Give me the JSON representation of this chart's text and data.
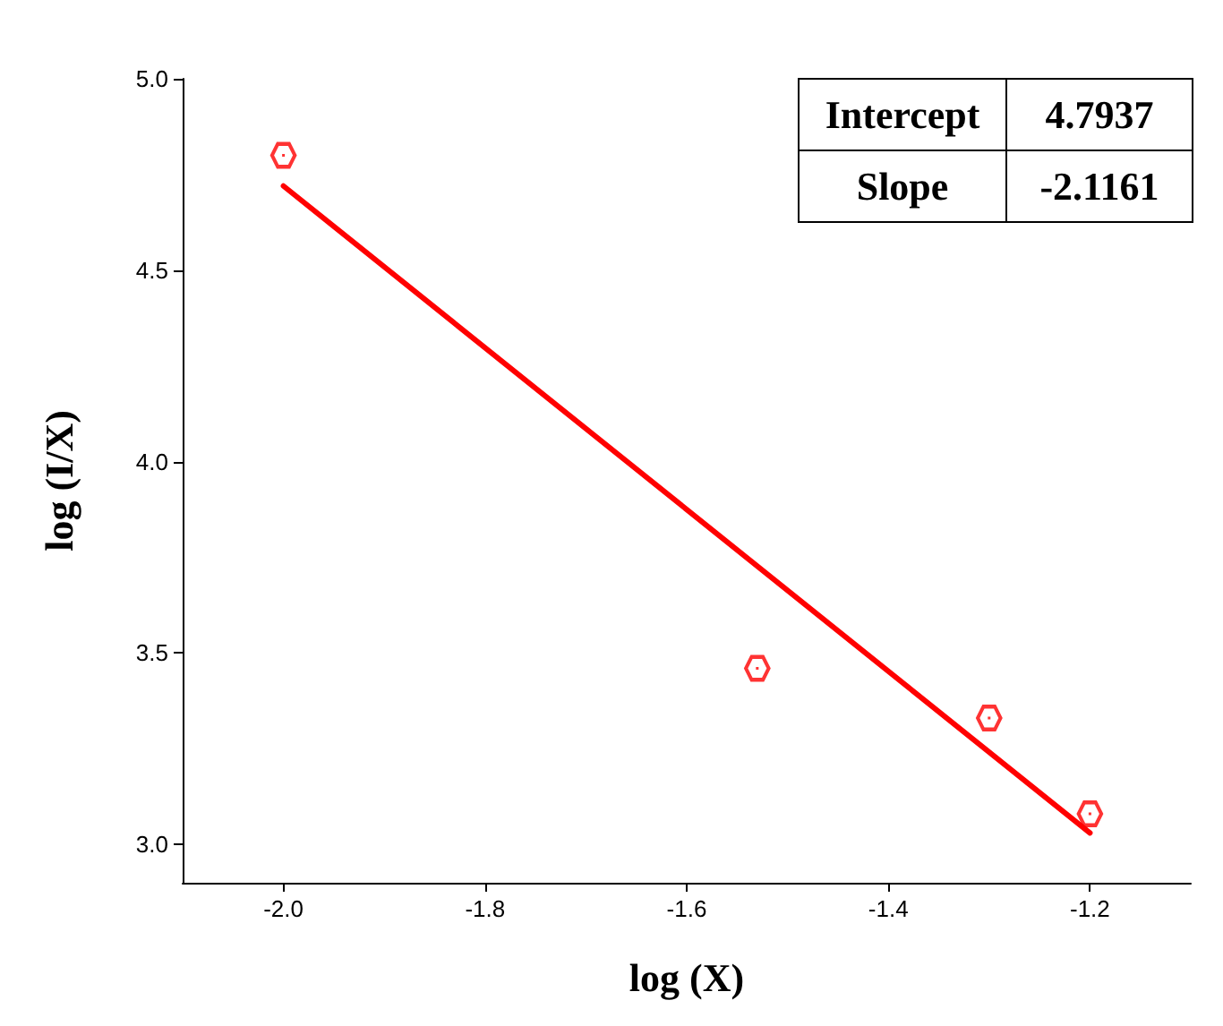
{
  "chart_data": {
    "type": "scatter",
    "xlabel": "log (X)",
    "ylabel": "log (I/X)",
    "x": [
      -2.0,
      -1.53,
      -1.3,
      -1.2
    ],
    "series": [
      {
        "type": "scatter",
        "color": "#ff0000",
        "values": [
          4.8,
          3.46,
          3.33,
          3.08
        ],
        "marker": "circle"
      },
      {
        "type": "line",
        "color": "#ff0000",
        "x": [
          -2.0,
          -1.2
        ],
        "values": [
          4.72,
          3.03
        ],
        "marker": "none",
        "line_style": "solid"
      }
    ],
    "xlim": [
      -2.1,
      -1.1
    ],
    "xticks": [
      {
        "value": -2,
        "label": "-2.0"
      },
      -1.8,
      -1.6,
      -1.4,
      -1.2
    ],
    "ylim": [
      2.9,
      5.0
    ],
    "yticks": [
      {
        "value": 3,
        "label": "3.0"
      },
      3.5,
      {
        "value": 4,
        "label": "4.0"
      },
      4.5,
      {
        "value": 5,
        "label": "5.0"
      }
    ],
    "grid": false,
    "annotations": [
      "Intercept",
      "4.7937",
      "Slope",
      "-2.1161"
    ]
  }
}
